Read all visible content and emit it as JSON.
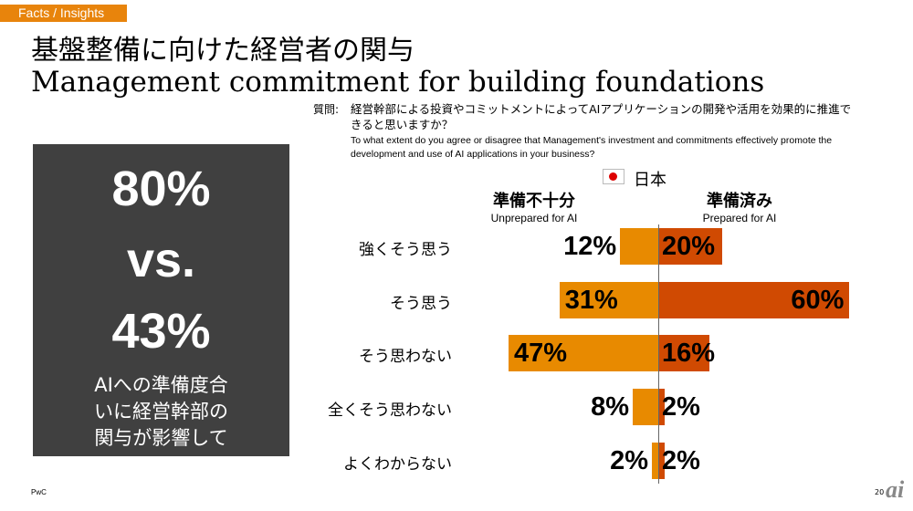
{
  "tag": "Facts / Insights",
  "title_jp": "基盤整備に向けた経営者の関与",
  "title_en": "Management commitment for building foundations",
  "question": {
    "label": "質問:",
    "jp": "経営幹部による投資やコミットメントによってAIアプリケーションの開発や活用を効果的に推進できると思いますか？",
    "en": "To what extent do you agree or disagree that Management's investment and commitments effectively promote the development and use of AI applications in your business?"
  },
  "country": "日本",
  "summary": {
    "a": "80%",
    "vs": "vs.",
    "b": "43%",
    "text": "AIへの準備度合いに経営幹部の関与が影響している"
  },
  "footer": {
    "brand": "PwC",
    "page": "20",
    "logo": "ai"
  },
  "colors": {
    "unprepared": "#e88a00",
    "prepared": "#d04a02",
    "panel": "#404040",
    "tag": "#e8840c"
  },
  "chart_data": {
    "type": "bar",
    "categories": [
      "強くそう思う",
      "そう思う",
      "そう思わない",
      "全くそう思わない",
      "よくわからない"
    ],
    "series": [
      {
        "name": "準備不十分",
        "subtitle": "Unprepared for AI",
        "values": [
          12,
          31,
          47,
          8,
          2
        ],
        "labels": [
          "12%",
          "31%",
          "47%",
          "8%",
          "2%"
        ]
      },
      {
        "name": "準備済み",
        "subtitle": "Prepared for AI",
        "values": [
          20,
          60,
          16,
          2,
          2
        ],
        "labels": [
          "20%",
          "60%",
          "16%",
          "2%",
          "2%"
        ]
      }
    ]
  }
}
